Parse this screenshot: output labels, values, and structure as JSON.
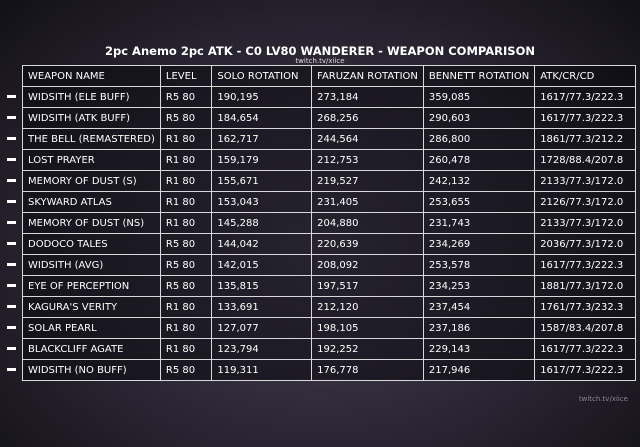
{
  "header": {
    "title": "2pc Anemo 2pc ATK - C0 LV80 WANDERER - WEAPON COMPARISON",
    "subtitle": "twitch.tv/xiice"
  },
  "table": {
    "columns": [
      "WEAPON NAME",
      "LEVEL",
      "SOLO ROTATION",
      "FARUZAN ROTATION",
      "BENNETT ROTATION",
      "ATK/CR/CD"
    ],
    "rows": [
      [
        "WIDSITH (ELE BUFF)",
        "R5 80",
        "190,195",
        "273,184",
        "359,085",
        "1617/77.3/222.3"
      ],
      [
        "WIDSITH (ATK BUFF)",
        "R5 80",
        "184,654",
        "268,256",
        "290,603",
        "1617/77.3/222.3"
      ],
      [
        "THE BELL (REMASTERED)",
        "R1 80",
        "162,717",
        "244,564",
        "286,800",
        "1861/77.3/212.2"
      ],
      [
        "LOST PRAYER",
        "R1 80",
        "159,179",
        "212,753",
        "260,478",
        "1728/88.4/207.8"
      ],
      [
        "MEMORY OF DUST (S)",
        "R1 80",
        "155,671",
        "219,527",
        "242,132",
        "2133/77.3/172.0"
      ],
      [
        "SKYWARD ATLAS",
        "R1 80",
        "153,043",
        "231,405",
        "253,655",
        "2126/77.3/172.0"
      ],
      [
        "MEMORY OF DUST (NS)",
        "R1 80",
        "145,288",
        "204,880",
        "231,743",
        "2133/77.3/172.0"
      ],
      [
        "DODOCO TALES",
        "R5 80",
        "144,042",
        "220,639",
        "234,269",
        "2036/77.3/172.0"
      ],
      [
        "WIDSITH (AVG)",
        "R5 80",
        "142,015",
        "208,092",
        "253,578",
        "1617/77.3/222.3"
      ],
      [
        "EYE OF PERCEPTION",
        "R5 80",
        "135,815",
        "197,517",
        "234,253",
        "1881/77.3/172.0"
      ],
      [
        "KAGURA'S VERITY",
        "R1 80",
        "133,691",
        "212,120",
        "237,454",
        "1761/77.3/232.3"
      ],
      [
        "SOLAR PEARL",
        "R1 80",
        "127,077",
        "198,105",
        "237,186",
        "1587/83.4/207.8"
      ],
      [
        "BLACKCLIFF AGATE",
        "R1 80",
        "123,794",
        "192,252",
        "229,143",
        "1617/77.3/222.3"
      ],
      [
        "WIDSITH (NO BUFF)",
        "R5 80",
        "119,311",
        "176,778",
        "217,946",
        "1617/77.3/222.3"
      ]
    ]
  }
}
